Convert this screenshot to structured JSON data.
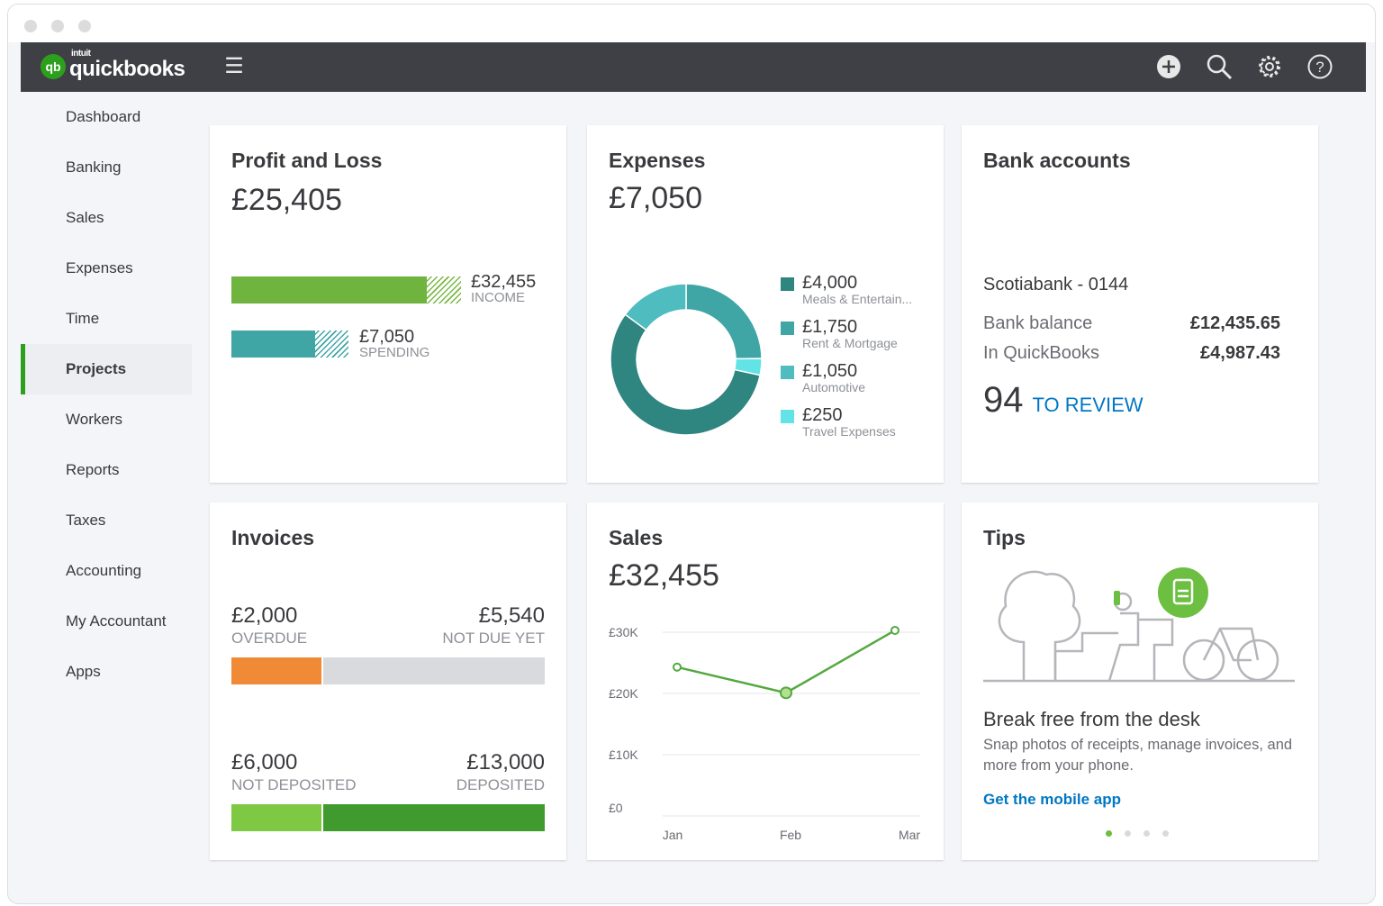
{
  "header": {
    "logo_small": "intuit",
    "logo": "quickbooks",
    "logo_badge": "qb"
  },
  "sidebar": {
    "items": [
      "Dashboard",
      "Banking",
      "Sales",
      "Expenses",
      "Time",
      "Projects",
      "Workers",
      "Reports",
      "Taxes",
      "Accounting",
      "My Accountant",
      "Apps"
    ],
    "active": "Projects"
  },
  "profit_loss": {
    "title": "Profit and Loss",
    "total": "£25,405",
    "income": {
      "amount": "£32,455",
      "label": "INCOME",
      "fraction": 0.87
    },
    "spending": {
      "amount": "£7,050",
      "label": "SPENDING",
      "fraction": 0.72
    }
  },
  "expenses": {
    "title": "Expenses",
    "total": "£7,050",
    "items": [
      {
        "amount": "£4,000",
        "category": "Meals & Entertain...",
        "value": 4000,
        "color": "#2f8580"
      },
      {
        "amount": "£1,750",
        "category": "Rent & Mortgage",
        "value": 1750,
        "color": "#3fa5a5"
      },
      {
        "amount": "£1,050",
        "category": "Automotive",
        "value": 1050,
        "color": "#4fbcc0"
      },
      {
        "amount": "£250",
        "category": "Travel Expenses",
        "value": 250,
        "color": "#62e3e5"
      }
    ]
  },
  "bank": {
    "title": "Bank accounts",
    "account": "Scotiabank - 0144",
    "bank_balance_label": "Bank balance",
    "bank_balance": "£12,435.65",
    "qb_label": "In QuickBooks",
    "qb_balance": "£4,987.43",
    "review_count": "94",
    "review_label": "TO REVIEW"
  },
  "invoices": {
    "title": "Invoices",
    "overdue": "£2,000",
    "overdue_label": "OVERDUE",
    "not_due": "£5,540",
    "not_due_label": "NOT DUE YET",
    "not_deposited": "£6,000",
    "not_deposited_label": "NOT DEPOSITED",
    "deposited": "£13,000",
    "deposited_label": "DEPOSITED"
  },
  "sales": {
    "title": "Sales",
    "total": "£32,455"
  },
  "chart_data": {
    "type": "line",
    "categories": [
      "Jan",
      "Feb",
      "Mar"
    ],
    "values": [
      24300,
      20100,
      30300
    ],
    "yticks": [
      "£0",
      "£10K",
      "£20K",
      "£30K"
    ],
    "ylim": [
      0,
      30000
    ],
    "color": "#53a93f"
  },
  "tips": {
    "title": "Tips",
    "heading": "Break free from the desk",
    "body": "Snap photos of receipts, manage invoices, and more from your phone.",
    "link": "Get the mobile app",
    "page": 1,
    "pages": 4
  }
}
